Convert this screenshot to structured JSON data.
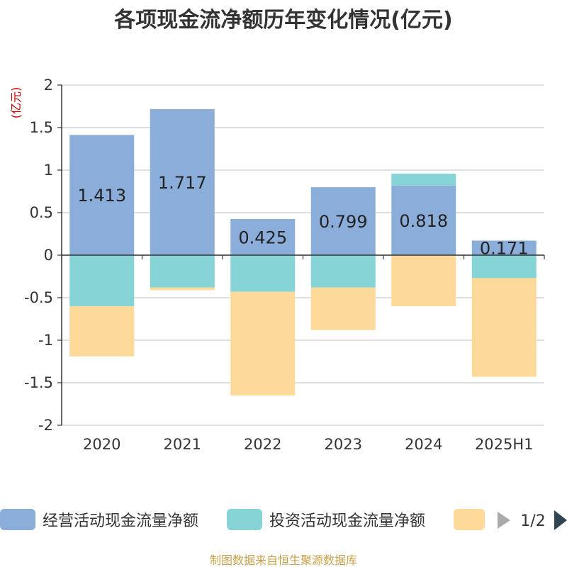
{
  "title": "各项现金流净额历年变化情况(亿元)",
  "source": "制图数据来自恒生聚源数据库",
  "legend": {
    "pager": "1/2",
    "prev_icon": "triangle-left-icon",
    "next_icon": "triangle-right-icon"
  },
  "chart_data": {
    "type": "bar",
    "stacked": true,
    "ylabel": "(亿元)",
    "ylim": [
      -2,
      2
    ],
    "yticks": [
      2,
      1.5,
      1,
      0.5,
      0,
      -0.5,
      -1,
      -1.5,
      -2
    ],
    "ytick_labels": [
      "2",
      "1.5",
      "1",
      "0.5",
      "0",
      "-0.5",
      "-1",
      "-1.5",
      "-2"
    ],
    "grid": true,
    "legend_position": "bottom",
    "categories": [
      "2020",
      "2021",
      "2022",
      "2023",
      "2024",
      "2025H1"
    ],
    "series": [
      {
        "name": "经营活动现金流量净额",
        "color": "#8badd9",
        "values": [
          1.413,
          1.717,
          0.425,
          0.799,
          0.818,
          0.171
        ],
        "labels": [
          "1.413",
          "1.717",
          "0.425",
          "0.799",
          "0.818",
          "0.171"
        ]
      },
      {
        "name": "投资活动现金流量净额",
        "color": "#86d4d6",
        "values": [
          -0.6,
          -0.38,
          -0.43,
          -0.38,
          0.14,
          -0.27
        ]
      },
      {
        "name": "",
        "color": "#fdd99a",
        "values": [
          -0.59,
          -0.03,
          -1.22,
          -0.5,
          -0.6,
          -1.16
        ]
      }
    ]
  }
}
